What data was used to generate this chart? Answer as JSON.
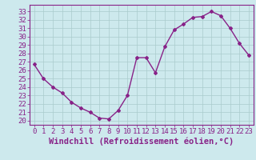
{
  "hours": [
    0,
    1,
    2,
    3,
    4,
    5,
    6,
    7,
    8,
    9,
    10,
    11,
    12,
    13,
    14,
    15,
    16,
    17,
    18,
    19,
    20,
    21,
    22,
    23
  ],
  "values": [
    26.7,
    25.0,
    24.0,
    23.3,
    22.2,
    21.5,
    21.0,
    20.3,
    20.2,
    21.2,
    23.0,
    27.5,
    27.5,
    25.7,
    28.8,
    30.8,
    31.5,
    32.3,
    32.4,
    33.0,
    32.5,
    31.0,
    29.2,
    27.8
  ],
  "line_color": "#882288",
  "marker": "D",
  "marker_size": 2,
  "xlabel": "Windchill (Refroidissement éolien,°C)",
  "ylabel_ticks": [
    20,
    21,
    22,
    23,
    24,
    25,
    26,
    27,
    28,
    29,
    30,
    31,
    32,
    33
  ],
  "ylim": [
    19.5,
    33.8
  ],
  "xlim": [
    -0.5,
    23.5
  ],
  "bg_color": "#cde9ed",
  "grid_color": "#aacccc",
  "xlabel_fontsize": 7.5,
  "tick_fontsize": 6.5
}
